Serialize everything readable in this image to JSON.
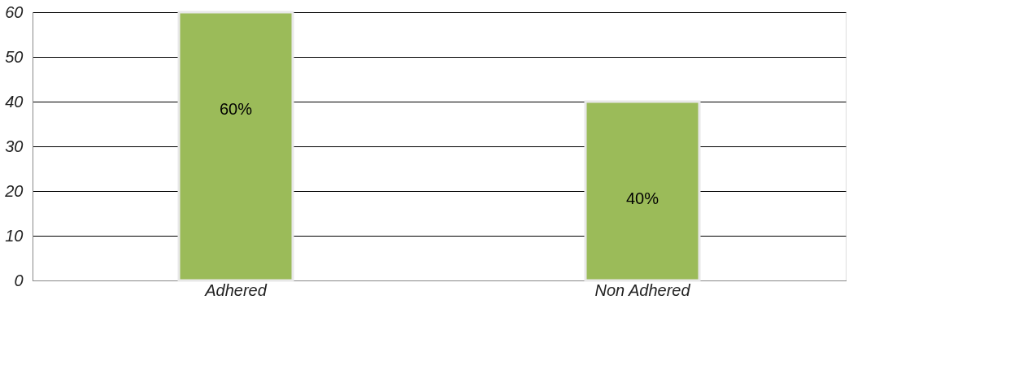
{
  "chart_data": {
    "type": "bar",
    "categories": [
      "Adhered",
      "Non Adhered"
    ],
    "values": [
      60,
      40
    ],
    "value_labels": [
      "60%",
      "40%"
    ],
    "color": "#9bbb59",
    "ylim": [
      0,
      60
    ],
    "yticks": [
      0,
      10,
      20,
      30,
      40,
      50,
      60
    ],
    "grid": "y"
  }
}
